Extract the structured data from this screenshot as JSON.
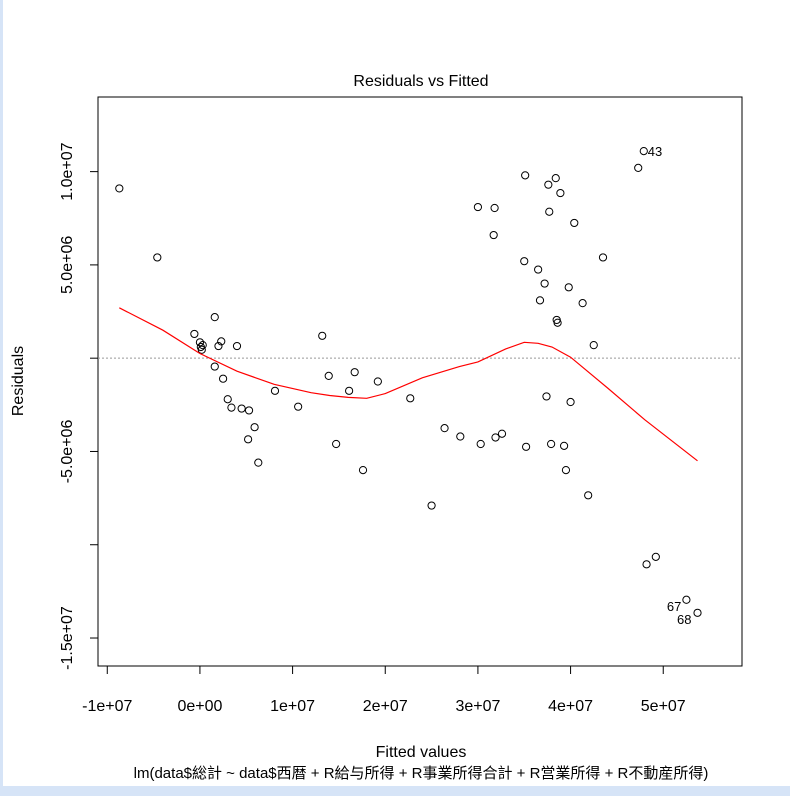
{
  "chart_data": {
    "type": "scatter",
    "title": "Residuals vs Fitted",
    "xlabel": "Fitted values",
    "ylabel": "Residuals",
    "subtitle": "lm(data$総計 ~ data$西暦 + R給与所得 + R事業所得合計 + R営業所得 + R不動産所得)",
    "xlim": [
      -11000000.0,
      58500000.0
    ],
    "ylim": [
      -16500000.0,
      14000000.0
    ],
    "x_ticks": [
      -10000000.0,
      0,
      10000000.0,
      20000000.0,
      30000000.0,
      40000000.0,
      50000000.0
    ],
    "x_tick_labels": [
      "-1e+07",
      "0e+00",
      "1e+07",
      "2e+07",
      "3e+07",
      "4e+07",
      "5e+07"
    ],
    "y_ticks": [
      -15000000.0,
      -10000000.0,
      -5000000.0,
      0,
      5000000.0,
      10000000.0
    ],
    "y_tick_labels": [
      "-1.5e+07",
      "",
      "-5.0e+06",
      "",
      "5.0e+06",
      "1.0e+07"
    ],
    "zero_line": 0,
    "grid": false,
    "points": [
      {
        "x": -8700000.0,
        "y": 9100000.0
      },
      {
        "x": -4600000.0,
        "y": 5400000.0
      },
      {
        "x": -600000.0,
        "y": 1300000.0
      },
      {
        "x": 0.0,
        "y": 850000.0
      },
      {
        "x": 100000.0,
        "y": 600000.0
      },
      {
        "x": 200000.0,
        "y": 450000.0
      },
      {
        "x": 300000.0,
        "y": 700000.0
      },
      {
        "x": 1600000.0,
        "y": 2200000.0
      },
      {
        "x": 1600000.0,
        "y": -450000.0
      },
      {
        "x": 2000000.0,
        "y": 650000.0
      },
      {
        "x": 2300000.0,
        "y": 900000.0
      },
      {
        "x": 2500000.0,
        "y": -1100000.0
      },
      {
        "x": 3000000.0,
        "y": -2200000.0
      },
      {
        "x": 3400000.0,
        "y": -2650000.0
      },
      {
        "x": 4000000.0,
        "y": 650000.0
      },
      {
        "x": 4500000.0,
        "y": -2700000.0
      },
      {
        "x": 5200000.0,
        "y": -4350000.0
      },
      {
        "x": 5300000.0,
        "y": -2800000.0
      },
      {
        "x": 5900000.0,
        "y": -3700000.0
      },
      {
        "x": 6300000.0,
        "y": -5600000.0
      },
      {
        "x": 8100000.0,
        "y": -1750000.0
      },
      {
        "x": 10600000.0,
        "y": -2600000.0
      },
      {
        "x": 13200000.0,
        "y": 1200000.0
      },
      {
        "x": 13900000.0,
        "y": -950000.0
      },
      {
        "x": 14700000.0,
        "y": -4600000.0
      },
      {
        "x": 16100000.0,
        "y": -1750000.0
      },
      {
        "x": 16700000.0,
        "y": -750000.0
      },
      {
        "x": 17600000.0,
        "y": -6000000.0
      },
      {
        "x": 19200000.0,
        "y": -1250000.0
      },
      {
        "x": 22700000.0,
        "y": -2150000.0
      },
      {
        "x": 25000000.0,
        "y": -7900000.0
      },
      {
        "x": 26400000.0,
        "y": -3750000.0
      },
      {
        "x": 28100000.0,
        "y": -4200000.0
      },
      {
        "x": 30000000.0,
        "y": 8100000.0
      },
      {
        "x": 30300000.0,
        "y": -4600000.0
      },
      {
        "x": 31700000.0,
        "y": 6600000.0
      },
      {
        "x": 31800000.0,
        "y": 8050000.0
      },
      {
        "x": 31900000.0,
        "y": -4250000.0
      },
      {
        "x": 32600000.0,
        "y": -4050000.0
      },
      {
        "x": 35000000.0,
        "y": 5200000.0
      },
      {
        "x": 35100000.0,
        "y": 9800000.0
      },
      {
        "x": 35200000.0,
        "y": -4750000.0
      },
      {
        "x": 36500000.0,
        "y": 4750000.0
      },
      {
        "x": 36700000.0,
        "y": 3100000.0
      },
      {
        "x": 37200000.0,
        "y": 4000000.0
      },
      {
        "x": 37400000.0,
        "y": -2050000.0
      },
      {
        "x": 37600000.0,
        "y": 9300000.0
      },
      {
        "x": 37700000.0,
        "y": 7850000.0
      },
      {
        "x": 37900000.0,
        "y": -4600000.0
      },
      {
        "x": 38400000.0,
        "y": 9650000.0
      },
      {
        "x": 38500000.0,
        "y": 2050000.0
      },
      {
        "x": 38600000.0,
        "y": 1900000.0
      },
      {
        "x": 38900000.0,
        "y": 8850000.0
      },
      {
        "x": 39300000.0,
        "y": -4700000.0
      },
      {
        "x": 39500000.0,
        "y": -6000000.0
      },
      {
        "x": 39800000.0,
        "y": 3800000.0
      },
      {
        "x": 40000000.0,
        "y": -2350000.0
      },
      {
        "x": 40400000.0,
        "y": 7250000.0
      },
      {
        "x": 41300000.0,
        "y": 2950000.0
      },
      {
        "x": 41900000.0,
        "y": -7350000.0
      },
      {
        "x": 42500000.0,
        "y": 700000.0
      },
      {
        "x": 43500000.0,
        "y": 5400000.0
      },
      {
        "x": 47300000.0,
        "y": 10200000.0
      },
      {
        "x": 47900000.0,
        "y": 11100000.0,
        "label": "43"
      },
      {
        "x": 48200000.0,
        "y": -11050000.0
      },
      {
        "x": 49200000.0,
        "y": -10650000.0
      },
      {
        "x": 52500000.0,
        "y": -12950000.0,
        "label": "67"
      },
      {
        "x": 53700000.0,
        "y": -13650000.0,
        "label": "68"
      }
    ],
    "smooth_line": {
      "color": "#ff0000",
      "x": [
        -8700000.0,
        -4000000.0,
        0,
        4000000.0,
        8000000.0,
        12000000.0,
        14000000.0,
        16000000.0,
        18000000.0,
        20000000.0,
        24000000.0,
        28000000.0,
        30000000.0,
        33000000.0,
        35000000.0,
        36500000.0,
        38000000.0,
        40000000.0,
        44000000.0,
        48000000.0,
        53700000.0
      ],
      "y": [
        2700000.0,
        1500000.0,
        250000.0,
        -700000.0,
        -1400000.0,
        -1850000.0,
        -2000000.0,
        -2100000.0,
        -2150000.0,
        -1900000.0,
        -1050000.0,
        -450000.0,
        -200000.0,
        500000.0,
        850000.0,
        800000.0,
        600000.0,
        50000.0,
        -1600000.0,
        -3300000.0,
        -5500000.0
      ]
    },
    "point_labels_color": "#000000",
    "zero_line_color": "#999999"
  }
}
